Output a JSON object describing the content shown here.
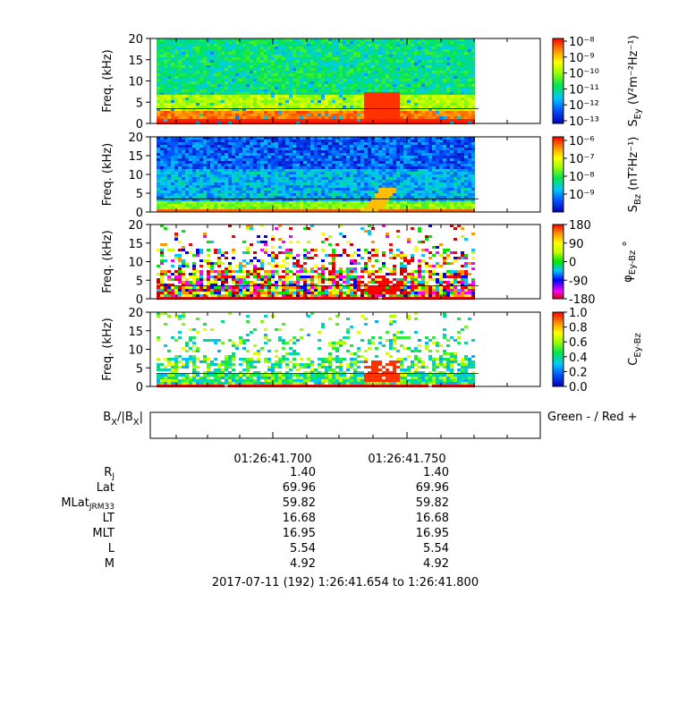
{
  "chart_data": [
    {
      "type": "heatmap",
      "ylabel": "Freq. (kHz)",
      "y_ticks": [
        "0",
        "5",
        "10",
        "15",
        "20"
      ],
      "ylim": [
        0,
        20
      ],
      "colorbar": {
        "label": "S",
        "label_sub": "Ey",
        "unit": "(V²m⁻²Hz⁻¹)",
        "ticks": [
          "10⁻⁸",
          "10⁻⁹",
          "10⁻¹⁰",
          "10⁻¹¹",
          "10⁻¹²",
          "10⁻¹³"
        ],
        "scale": "log"
      },
      "reference_line_kHz": 3.5
    },
    {
      "type": "heatmap",
      "ylabel": "Freq. (kHz)",
      "y_ticks": [
        "0",
        "5",
        "10",
        "15",
        "20"
      ],
      "ylim": [
        0,
        20
      ],
      "colorbar": {
        "label": "S",
        "label_sub": "Bz",
        "unit": "(nT²Hz⁻¹)",
        "ticks": [
          "10⁻⁶",
          "10⁻⁷",
          "10⁻⁸",
          "10⁻⁹"
        ],
        "scale": "log"
      },
      "reference_line_kHz": 3.5
    },
    {
      "type": "heatmap",
      "ylabel": "Freq. (kHz)",
      "y_ticks": [
        "0",
        "5",
        "10",
        "15",
        "20"
      ],
      "ylim": [
        0,
        20
      ],
      "colorbar": {
        "label": "φ",
        "label_sub": "Ey-Bz",
        "unit": "°",
        "ticks": [
          "180",
          "90",
          "0",
          "-90",
          "-180"
        ],
        "scale": "linear"
      },
      "reference_line_kHz": 3.5
    },
    {
      "type": "heatmap",
      "ylabel": "Freq. (kHz)",
      "y_ticks": [
        "0",
        "5",
        "10",
        "15",
        "20"
      ],
      "ylim": [
        0,
        20
      ],
      "colorbar": {
        "label": "C",
        "label_sub": "Ey-Bz",
        "unit": "",
        "ticks": [
          "1.0",
          "0.8",
          "0.6",
          "0.4",
          "0.2",
          "0.0"
        ],
        "scale": "linear"
      },
      "reference_line_kHz": 3.5
    },
    {
      "type": "line",
      "ylabel_main": "B",
      "ylabel_sub1": "X",
      "ylabel_mid": "/|B",
      "ylabel_sub2": "X",
      "ylabel_end": "|",
      "note": "Green - / Red +",
      "series": []
    }
  ],
  "x_axis": {
    "tick_labels": [
      "01:26:41.700",
      "01:26:41.750"
    ]
  },
  "ephemeris": {
    "rows": [
      {
        "label": "R",
        "sub": "J",
        "v1": "1.40",
        "v2": "1.40"
      },
      {
        "label": "Lat",
        "sub": "",
        "v1": "69.96",
        "v2": "69.96"
      },
      {
        "label": "MLat",
        "sub": "JRM33",
        "v1": "59.82",
        "v2": "59.82"
      },
      {
        "label": "LT",
        "sub": "",
        "v1": "16.68",
        "v2": "16.68"
      },
      {
        "label": "MLT",
        "sub": "",
        "v1": "16.95",
        "v2": "16.95"
      },
      {
        "label": "L",
        "sub": "",
        "v1": "5.54",
        "v2": "5.54"
      },
      {
        "label": "M",
        "sub": "",
        "v1": "4.92",
        "v2": "4.92"
      }
    ]
  },
  "time_range": "2017-07-11 (192) 1:26:41.654 to 1:26:41.800"
}
